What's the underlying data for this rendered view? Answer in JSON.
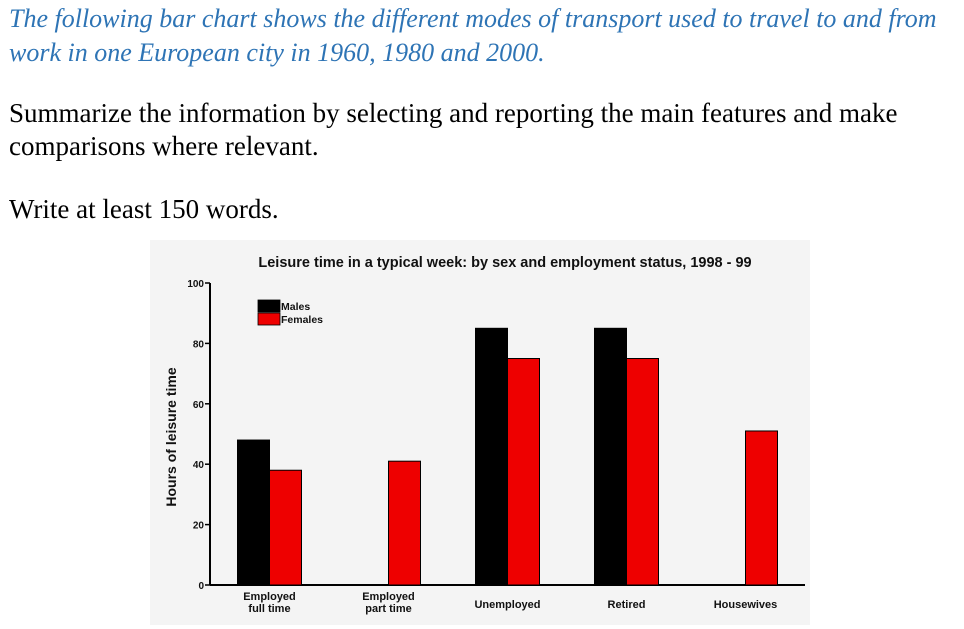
{
  "task": {
    "title": "The following bar chart shows the different modes of transport used to travel to and from work in one European city in 1960, 1980 and 2000.",
    "instruction": "Summarize the information by selecting and reporting the main features and make comparisons where relevant.",
    "word_count": "Write at least 150 words."
  },
  "chart_data": {
    "type": "bar",
    "title": "Leisure time in a typical week: by sex and employment status, 1998 - 99",
    "xlabel": "",
    "ylabel": "Hours of leisure time",
    "ylim": [
      0,
      100
    ],
    "yticks": [
      "0",
      "20",
      "40",
      "60",
      "80",
      "100"
    ],
    "categories": [
      [
        "Employed",
        "full time"
      ],
      [
        "Employed",
        "part time"
      ],
      [
        "Unemployed"
      ],
      [
        "Retired"
      ],
      [
        "Housewives"
      ]
    ],
    "series": [
      {
        "name": "Males",
        "color": "#000000",
        "values": [
          48,
          null,
          85,
          85,
          null
        ]
      },
      {
        "name": "Females",
        "color": "#ee0000",
        "values": [
          38,
          41,
          75,
          75,
          51
        ]
      }
    ],
    "legend_position": "top-left",
    "grid": false
  }
}
